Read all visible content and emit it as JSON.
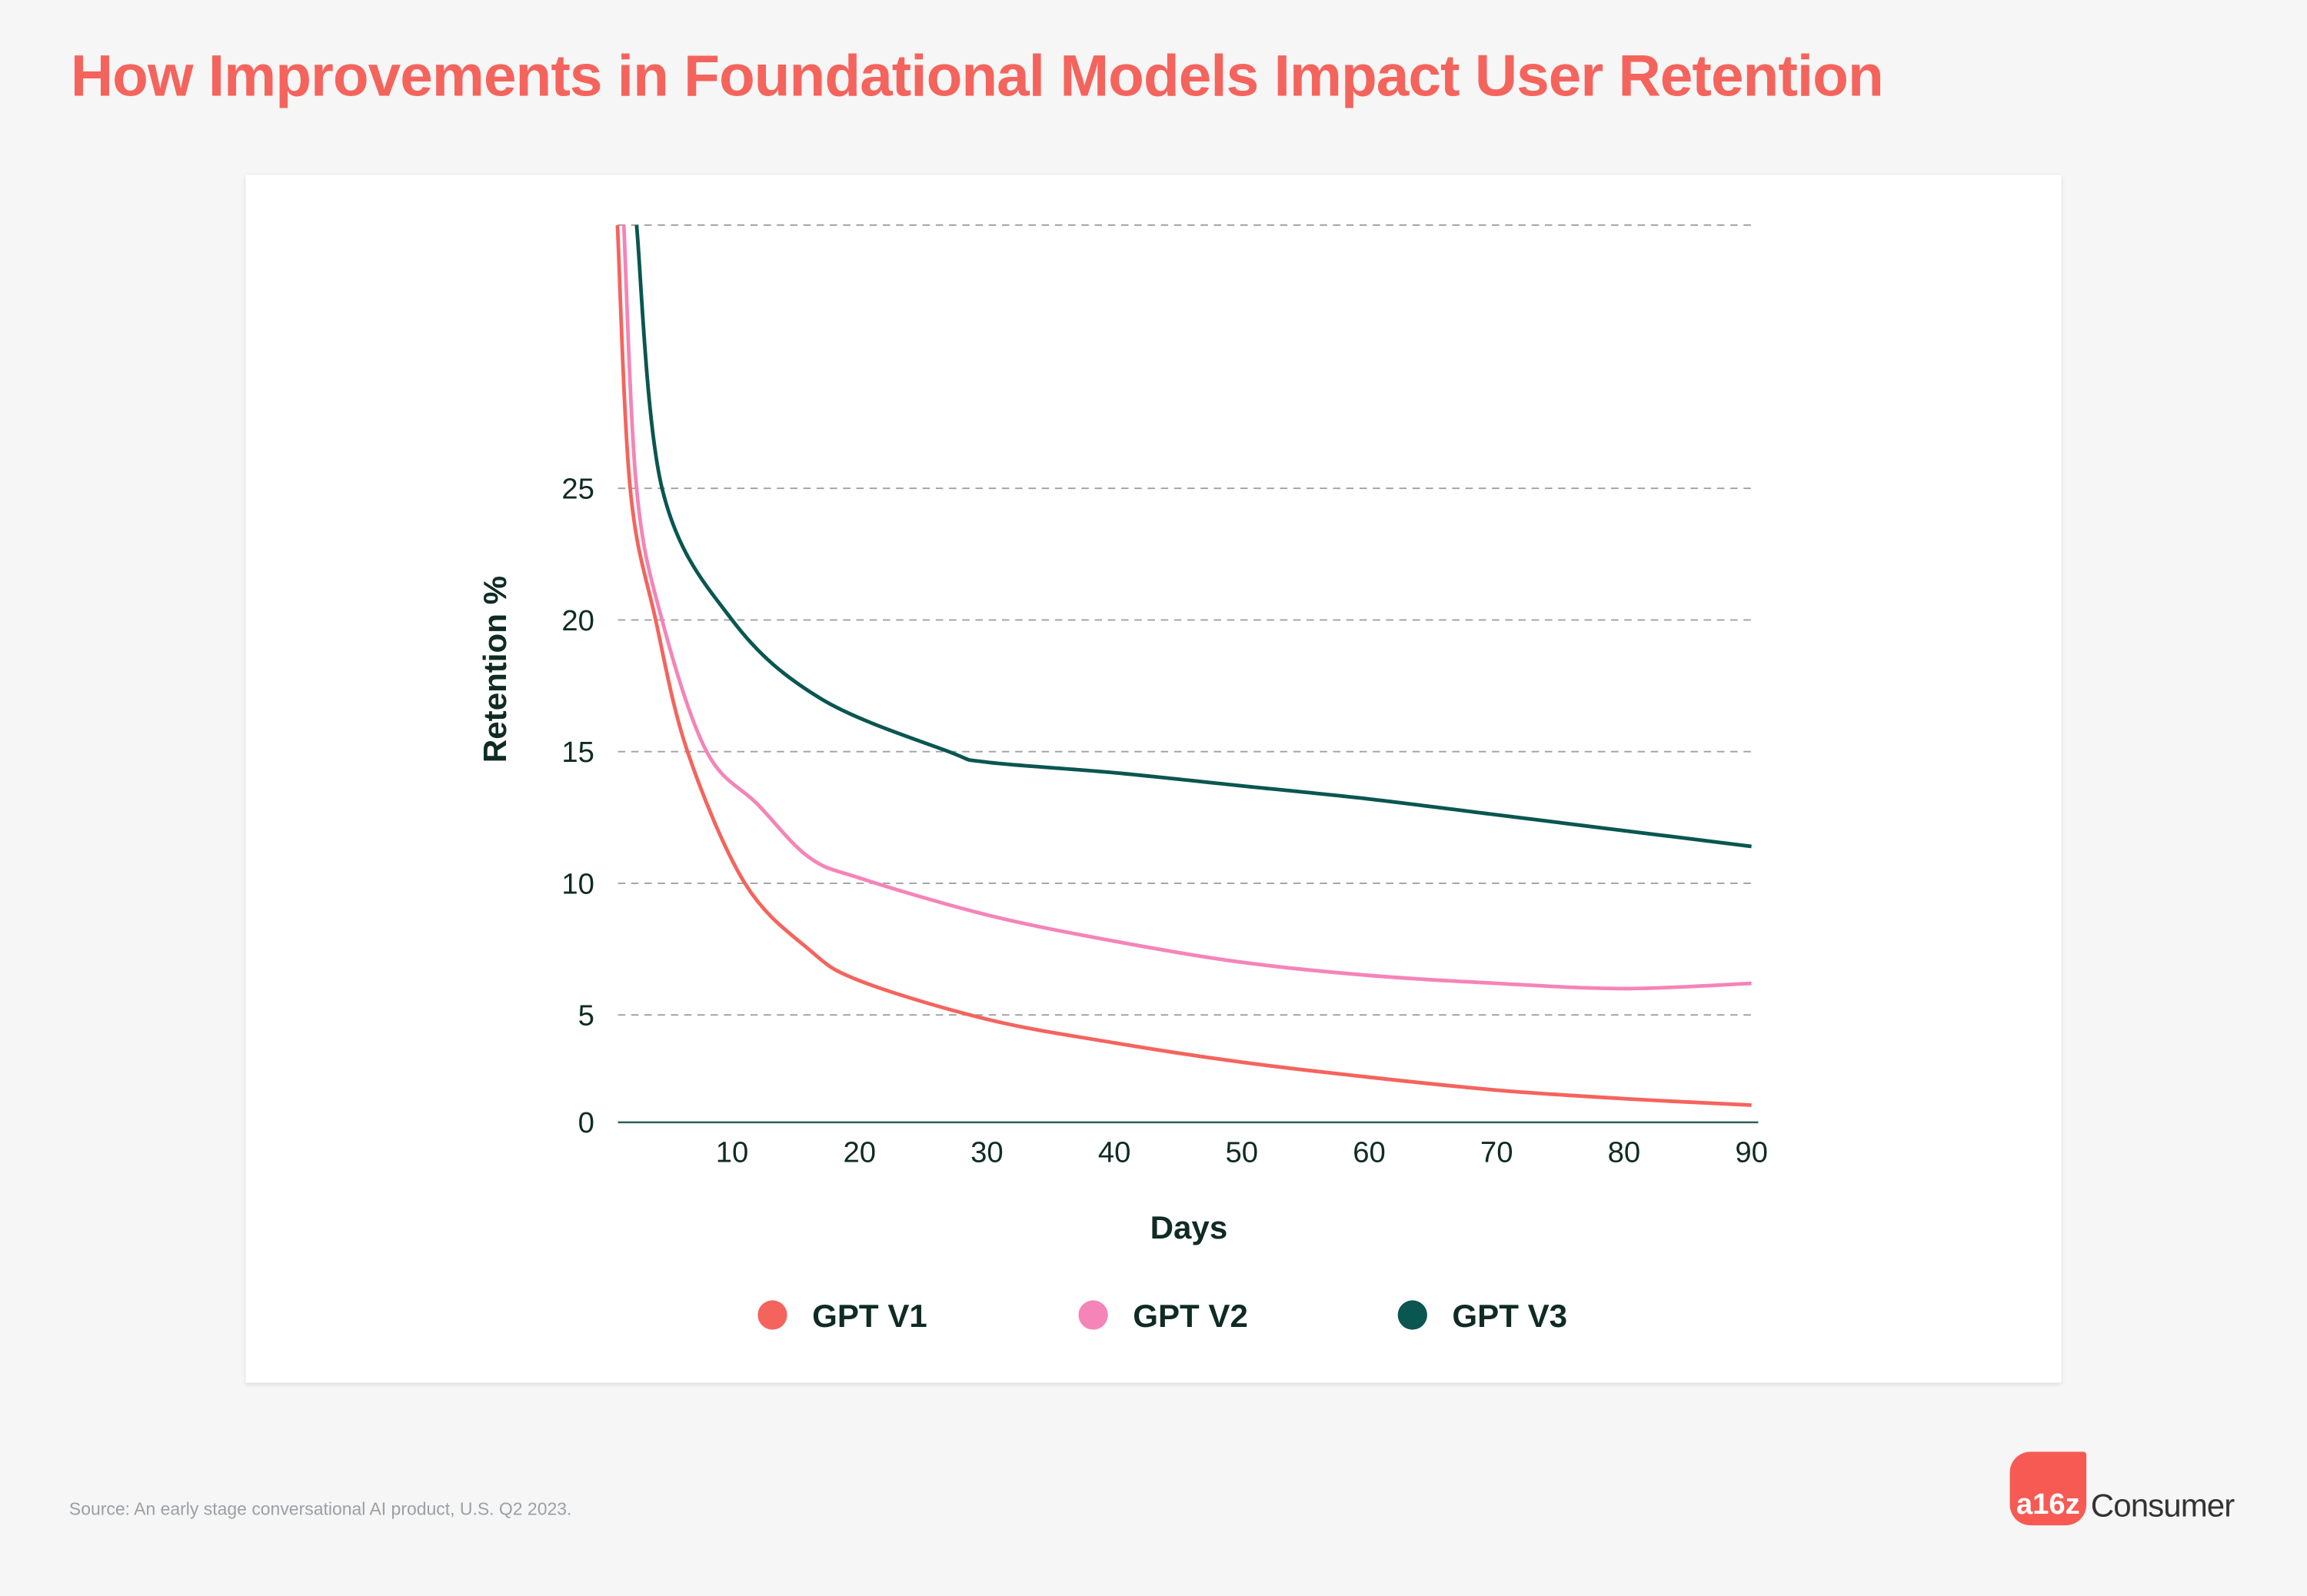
{
  "title": "How Improvements in Foundational Models Impact User Retention",
  "source": "Source: An early stage conversational AI product, U.S. Q2 2023.",
  "logo": {
    "mark": "a16z",
    "text": "Consumer",
    "color": "#f75a52"
  },
  "chart_data": {
    "type": "line",
    "xlabel": "Days",
    "ylabel": "Retention %",
    "xlim": [
      0,
      90
    ],
    "ylim": [
      0,
      35
    ],
    "xticks": [
      10,
      20,
      30,
      40,
      50,
      60,
      70,
      80,
      90
    ],
    "yticks": [
      0,
      5,
      10,
      15,
      20,
      25
    ],
    "grid": true,
    "legend": "bottom",
    "series": [
      {
        "name": "GPT V1",
        "color": "#f4645d",
        "x": [
          1,
          2,
          4,
          6.5,
          11,
          16,
          20,
          30,
          40,
          50,
          60,
          70,
          80,
          90
        ],
        "y": [
          35,
          25,
          20,
          15,
          10,
          7.5,
          6.3,
          4.8,
          3.7,
          2.8,
          2.1,
          1.5,
          1.1,
          0.8
        ]
      },
      {
        "name": "GPT V2",
        "color": "#f584b8",
        "x": [
          1.5,
          2.5,
          4.5,
          8,
          12,
          16,
          20,
          30,
          40,
          50,
          60,
          70,
          80,
          90
        ],
        "y": [
          35,
          25,
          20,
          15,
          13,
          11,
          10.2,
          8.8,
          7.8,
          7.0,
          6.5,
          6.2,
          6.0,
          6.2
        ]
      },
      {
        "name": "GPT V3",
        "color": "#0a5650",
        "x": [
          2.5,
          4.5,
          10,
          17,
          27,
          30,
          40,
          50,
          60,
          70,
          80,
          90
        ],
        "y": [
          35,
          25,
          20,
          17,
          15,
          14.6,
          14.2,
          13.7,
          13.2,
          12.6,
          12.0,
          11.4
        ]
      }
    ]
  }
}
